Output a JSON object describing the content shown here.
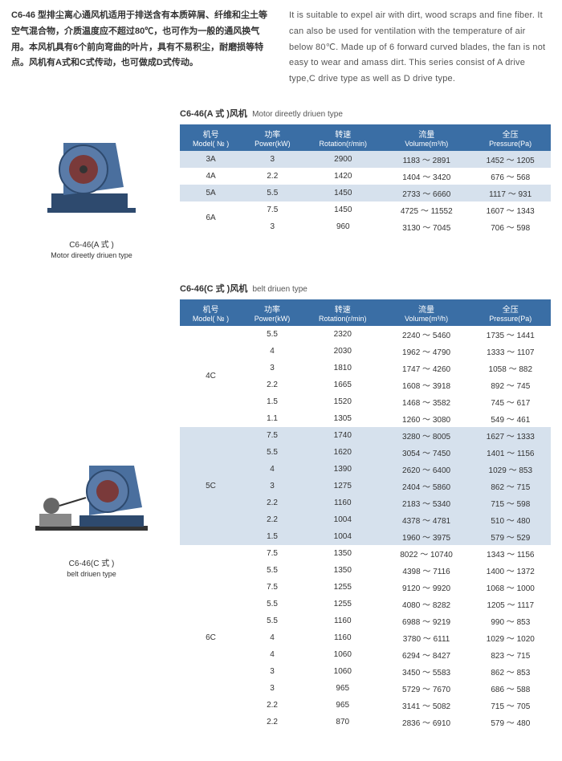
{
  "intro": {
    "cn": "C6-46 型排尘离心通风机适用于排送含有本质碎屑、纤维和尘土等空气混合物，介质温度应不超过80℃，也可作为一般的通风换气用。本风机具有6个前向弯曲的叶片，具有不易积尘，耐磨损等特点。风机有A式和C式传动，也可做成D式传动。",
    "en": "It is suitable to expel air with dirt, wood scraps and fine fiber. It can also be used for ventilation with the temperature of air below 80℃. Made up of 6 forward curved blades, the fan is not easy to wear and amass dirt. This series consist of A drive type,C drive type as well as D drive type."
  },
  "colors": {
    "header_bg": "#3a6ea5",
    "band_bg": "#d6e1ed"
  },
  "headers": {
    "model": "机号",
    "model_en": "Model( № )",
    "power": "功率",
    "power_en": "Power(kW)",
    "rot": "转速",
    "rot_en": "Rotation(r/min)",
    "vol": "流量",
    "vol_en": "Volume(m³/h)",
    "pres": "全压",
    "pres_en": "Pressure(Pa)"
  },
  "tableA": {
    "title_cn": "C6-46(A 式 )风机",
    "title_en": "Motor direetly driuen type",
    "img_title": "C6-46(A 式 )",
    "img_sub": "Motor direetly driuen type",
    "rows": [
      {
        "model": "3A",
        "power": "3",
        "rot": "2900",
        "vol": "1183 ～ 2891",
        "pres": "1452 ～ 1205",
        "band": true,
        "span": 1
      },
      {
        "model": "4A",
        "power": "2.2",
        "rot": "1420",
        "vol": "1404 ～ 3420",
        "pres": "676 ～ 568",
        "band": false,
        "span": 1
      },
      {
        "model": "5A",
        "power": "5.5",
        "rot": "1450",
        "vol": "2733 ～ 6660",
        "pres": "1117 ～ 931",
        "band": true,
        "span": 1
      },
      {
        "model": "6A",
        "power": "7.5",
        "rot": "1450",
        "vol": "4725 ～ 11552",
        "pres": "1607 ～ 1343",
        "band": false,
        "span": 2
      },
      {
        "power": "3",
        "rot": "960",
        "vol": "3130 ～ 7045",
        "pres": "706 ～ 598",
        "band": false
      }
    ]
  },
  "tableC": {
    "title_cn": "C6-46(C 式 )风机",
    "title_en": "belt driuen type",
    "img_title": "C6-46(C 式 )",
    "img_sub": "belt driuen type",
    "rows": [
      {
        "model": "4C",
        "span": 6,
        "band": false,
        "power": "5.5",
        "rot": "2320",
        "vol": "2240 ～ 5460",
        "pres": "1735 ～ 1441"
      },
      {
        "band": false,
        "power": "4",
        "rot": "2030",
        "vol": "1962 ～ 4790",
        "pres": "1333 ～ 1107"
      },
      {
        "band": false,
        "power": "3",
        "rot": "1810",
        "vol": "1747 ～ 4260",
        "pres": "1058 ～ 882"
      },
      {
        "band": false,
        "power": "2.2",
        "rot": "1665",
        "vol": "1608 ～ 3918",
        "pres": "892 ～ 745"
      },
      {
        "band": false,
        "power": "1.5",
        "rot": "1520",
        "vol": "1468 ～ 3582",
        "pres": "745 ～ 617"
      },
      {
        "band": false,
        "power": "1.1",
        "rot": "1305",
        "vol": "1260 ～ 3080",
        "pres": "549 ～ 461"
      },
      {
        "model": "5C",
        "span": 7,
        "band": true,
        "power": "7.5",
        "rot": "1740",
        "vol": "3280 ～ 8005",
        "pres": "1627 ～ 1333"
      },
      {
        "band": true,
        "power": "5.5",
        "rot": "1620",
        "vol": "3054 ～ 7450",
        "pres": "1401 ～ 1156"
      },
      {
        "band": true,
        "power": "4",
        "rot": "1390",
        "vol": "2620 ～ 6400",
        "pres": "1029 ～ 853"
      },
      {
        "band": true,
        "power": "3",
        "rot": "1275",
        "vol": "2404 ～ 5860",
        "pres": "862 ～ 715"
      },
      {
        "band": true,
        "power": "2.2",
        "rot": "1160",
        "vol": "2183 ～ 5340",
        "pres": "715 ～ 598"
      },
      {
        "band": true,
        "power": "2.2",
        "rot": "1004",
        "vol": "4378 ～ 4781",
        "pres": "510 ～ 480"
      },
      {
        "band": true,
        "power": "1.5",
        "rot": "1004",
        "vol": "1960 ～ 3975",
        "pres": "579 ～ 529"
      },
      {
        "model": "6C",
        "span": 11,
        "band": false,
        "power": "7.5",
        "rot": "1350",
        "vol": "8022 ～ 10740",
        "pres": "1343 ～ 1156"
      },
      {
        "band": false,
        "power": "5.5",
        "rot": "1350",
        "vol": "4398 ～ 7116",
        "pres": "1400 ～ 1372"
      },
      {
        "band": false,
        "power": "7.5",
        "rot": "1255",
        "vol": "9120 ～ 9920",
        "pres": "1068 ～ 1000"
      },
      {
        "band": false,
        "power": "5.5",
        "rot": "1255",
        "vol": "4080 ～ 8282",
        "pres": "1205 ～ 1117"
      },
      {
        "band": false,
        "power": "5.5",
        "rot": "1160",
        "vol": "6988 ～ 9219",
        "pres": "990 ～ 853"
      },
      {
        "band": false,
        "power": "4",
        "rot": "1160",
        "vol": "3780 ～ 6111",
        "pres": "1029 ～ 1020"
      },
      {
        "band": false,
        "power": "4",
        "rot": "1060",
        "vol": "6294 ～ 8427",
        "pres": "823 ～ 715"
      },
      {
        "band": false,
        "power": "3",
        "rot": "1060",
        "vol": "3450 ～ 5583",
        "pres": "862 ～ 853"
      },
      {
        "band": false,
        "power": "3",
        "rot": "965",
        "vol": "5729 ～ 7670",
        "pres": "686 ～ 588"
      },
      {
        "band": false,
        "power": "2.2",
        "rot": "965",
        "vol": "3141 ～ 5082",
        "pres": "715 ～ 705"
      },
      {
        "band": false,
        "power": "2.2",
        "rot": "870",
        "vol": "2836 ～ 6910",
        "pres": "579 ～ 480"
      }
    ]
  }
}
